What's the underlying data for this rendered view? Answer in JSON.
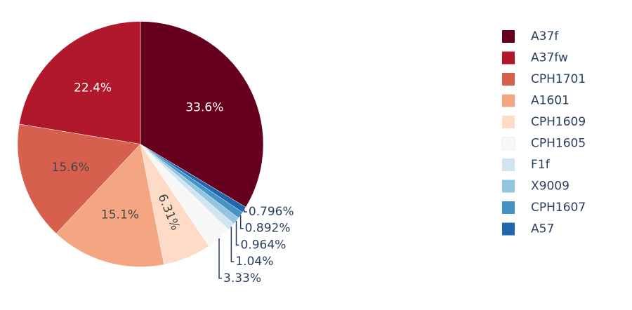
{
  "chart_data": {
    "type": "pie",
    "categories": [
      "A37f",
      "A37fw",
      "CPH1701",
      "A1601",
      "CPH1609",
      "CPH1605",
      "F1f",
      "X9009",
      "CPH1607",
      "A57"
    ],
    "values": [
      33.6,
      22.4,
      15.6,
      15.1,
      6.31,
      3.33,
      1.04,
      0.964,
      0.892,
      0.796
    ],
    "value_labels": [
      "33.6%",
      "22.4%",
      "15.6%",
      "15.1%",
      "6.31%",
      "3.33%",
      "1.04%",
      "0.964%",
      "0.892%",
      "0.796%"
    ],
    "colors": [
      "#67001f",
      "#b2182b",
      "#d6604d",
      "#f4a582",
      "#fddbc7",
      "#f7f7f7",
      "#d1e5f0",
      "#92c5de",
      "#4393c3",
      "#2166ac"
    ],
    "legend": "right"
  }
}
